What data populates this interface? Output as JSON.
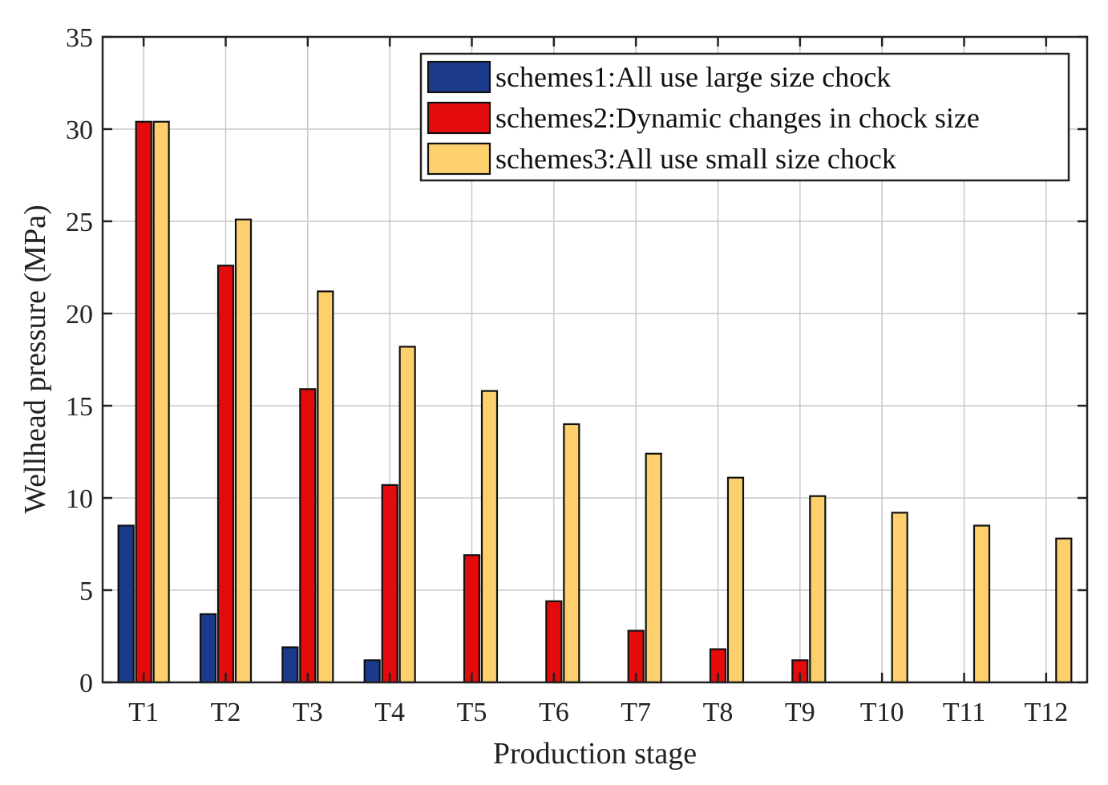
{
  "chart_data": {
    "type": "bar",
    "xlabel": "Production stage",
    "ylabel": "Wellhead pressure (MPa)",
    "ylim": [
      0,
      35
    ],
    "yticks": [
      0,
      5,
      10,
      15,
      20,
      25,
      30,
      35
    ],
    "grid": true,
    "legend_position": "top-right",
    "categories": [
      "T1",
      "T2",
      "T3",
      "T4",
      "T5",
      "T6",
      "T7",
      "T8",
      "T9",
      "T10",
      "T11",
      "T12"
    ],
    "series": [
      {
        "name": "schemes1:All use large size chock",
        "color": "#1b3a8c",
        "values": [
          8.5,
          3.7,
          1.9,
          1.2,
          0,
          0,
          0,
          0,
          0,
          0,
          0,
          0
        ]
      },
      {
        "name": "schemes2:Dynamic changes in chock size",
        "color": "#e30b0b",
        "values": [
          30.4,
          22.6,
          15.9,
          10.7,
          6.9,
          4.4,
          2.8,
          1.8,
          1.2,
          0,
          0,
          0
        ]
      },
      {
        "name": "schemes3:All use small size chock",
        "color": "#fdcf6d",
        "values": [
          30.4,
          25.1,
          21.2,
          18.2,
          15.8,
          14.0,
          12.4,
          11.1,
          10.1,
          9.2,
          8.5,
          7.8
        ]
      }
    ]
  }
}
